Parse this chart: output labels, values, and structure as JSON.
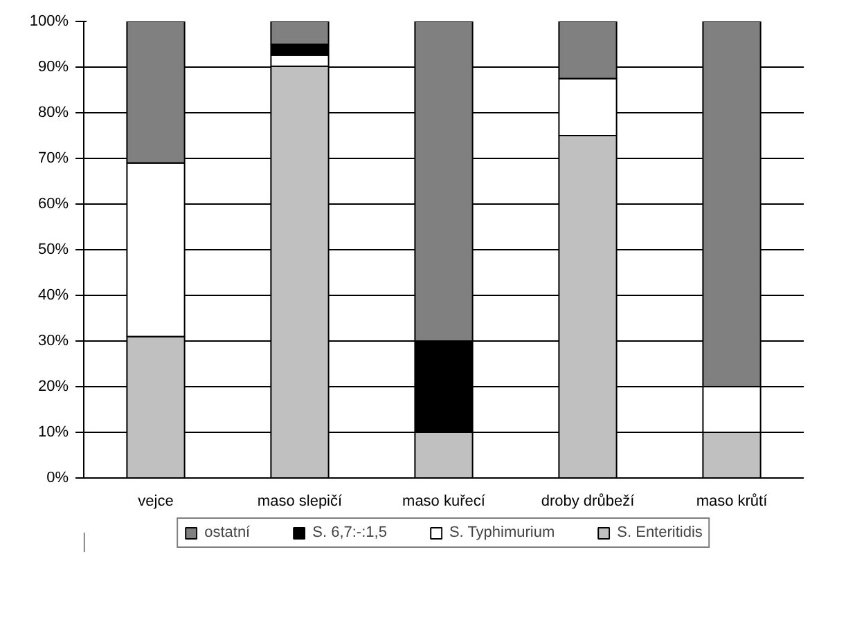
{
  "chart_data": {
    "type": "bar",
    "stacked": true,
    "categories": [
      "vejce",
      "maso slepičí",
      "maso kuřecí",
      "droby drůbeží",
      "maso krůtí"
    ],
    "series": [
      {
        "name": "S. Enteritidis",
        "color": "#c0c0c0",
        "values": [
          31,
          90.2,
          10,
          75,
          10
        ]
      },
      {
        "name": "S. Typhimurium",
        "color": "#ffffff",
        "values": [
          38,
          2.4,
          0,
          12.5,
          10
        ]
      },
      {
        "name": "S. 6,7:-:1,5",
        "color": "#000000",
        "values": [
          0,
          2.4,
          20,
          0,
          0
        ]
      },
      {
        "name": "ostatní",
        "color": "#808080",
        "values": [
          31,
          5.0,
          70,
          12.5,
          80
        ]
      }
    ],
    "ylim": [
      0,
      100
    ],
    "yticks": [
      {
        "value": 0,
        "label": "0%"
      },
      {
        "value": 10,
        "label": "10%"
      },
      {
        "value": 20,
        "label": "20%"
      },
      {
        "value": 30,
        "label": "30%"
      },
      {
        "value": 40,
        "label": "40%"
      },
      {
        "value": 50,
        "label": "50%"
      },
      {
        "value": 60,
        "label": "60%"
      },
      {
        "value": 70,
        "label": "70%"
      },
      {
        "value": 80,
        "label": "80%"
      },
      {
        "value": 90,
        "label": "90%"
      },
      {
        "value": 100,
        "label": "100%"
      }
    ],
    "grid": "y",
    "legend": "bottom"
  }
}
